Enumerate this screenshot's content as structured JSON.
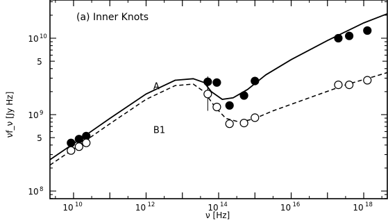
{
  "chart_data": {
    "type": "scatter",
    "title": "(a) Inner Knots",
    "xlabel": "ν [Hz]",
    "ylabel": "νf_ν [Jy Hz]",
    "xscale": "log",
    "yscale": "log",
    "xlim_log10": [
      9.35,
      18.65
    ],
    "ylim_log10": [
      7.9,
      10.5
    ],
    "grid": false,
    "x_ticks": [
      {
        "base": "10",
        "exp": "10",
        "log10": 10
      },
      {
        "base": "10",
        "exp": "12",
        "log10": 12
      },
      {
        "base": "10",
        "exp": "14",
        "log10": 14
      },
      {
        "base": "10",
        "exp": "16",
        "log10": 16
      },
      {
        "base": "10",
        "exp": "18",
        "log10": 18
      }
    ],
    "y_ticks": [
      {
        "text": "10",
        "exp": "8",
        "log10": 8
      },
      {
        "text": "5",
        "exp": "",
        "log10": 8.699
      },
      {
        "text": "10",
        "exp": "9",
        "log10": 9
      },
      {
        "text": "5",
        "exp": "",
        "log10": 9.699
      },
      {
        "text": "10",
        "exp": "10",
        "log10": 10
      }
    ],
    "annotations": [
      {
        "text": "A",
        "log10_x": 12.2,
        "log10_y": 9.33
      },
      {
        "text": "B1",
        "log10_x": 12.2,
        "log10_y": 8.76
      }
    ],
    "series": [
      {
        "name": "A",
        "style": "filled",
        "points": [
          [
            9.93,
            8.63
          ],
          [
            10.15,
            8.68
          ],
          [
            10.35,
            8.72
          ],
          [
            13.7,
            9.43
          ],
          [
            13.95,
            9.42
          ],
          [
            14.3,
            9.12
          ],
          [
            14.7,
            9.25
          ],
          [
            15.0,
            9.44
          ],
          [
            17.3,
            10.0
          ],
          [
            17.6,
            10.03
          ],
          [
            18.1,
            10.1
          ]
        ],
        "err_x": 13.7,
        "err_range_log10": [
          9.27,
          9.5
        ]
      },
      {
        "name": "B1",
        "style": "open",
        "points": [
          [
            9.93,
            8.53
          ],
          [
            10.15,
            8.58
          ],
          [
            10.35,
            8.63
          ],
          [
            13.7,
            9.27
          ],
          [
            13.95,
            9.1
          ],
          [
            14.3,
            8.88
          ],
          [
            14.7,
            8.89
          ],
          [
            15.0,
            8.96
          ],
          [
            17.3,
            9.39
          ],
          [
            17.6,
            9.39
          ],
          [
            18.1,
            9.45
          ]
        ],
        "err_x": 13.7,
        "err_range_log10": [
          9.05,
          9.4
        ]
      }
    ],
    "curves": [
      {
        "name": "A",
        "dash": "solid",
        "points": [
          [
            9.35,
            8.41
          ],
          [
            10.0,
            8.62
          ],
          [
            11.0,
            8.95
          ],
          [
            12.0,
            9.27
          ],
          [
            12.8,
            9.45
          ],
          [
            13.3,
            9.47
          ],
          [
            13.6,
            9.42
          ],
          [
            13.8,
            9.3
          ],
          [
            14.1,
            9.2
          ],
          [
            14.4,
            9.22
          ],
          [
            14.8,
            9.33
          ],
          [
            15.3,
            9.52
          ],
          [
            16.0,
            9.72
          ],
          [
            17.0,
            9.97
          ],
          [
            18.0,
            10.2
          ],
          [
            18.65,
            10.32
          ]
        ]
      },
      {
        "name": "B1",
        "dash": "dashed",
        "points": [
          [
            9.35,
            8.34
          ],
          [
            10.0,
            8.55
          ],
          [
            11.0,
            8.88
          ],
          [
            12.0,
            9.2
          ],
          [
            12.8,
            9.38
          ],
          [
            13.3,
            9.4
          ],
          [
            13.6,
            9.3
          ],
          [
            13.9,
            9.1
          ],
          [
            14.2,
            8.95
          ],
          [
            14.6,
            8.9
          ],
          [
            15.0,
            8.95
          ],
          [
            15.5,
            9.05
          ],
          [
            16.5,
            9.22
          ],
          [
            17.5,
            9.39
          ],
          [
            18.3,
            9.5
          ],
          [
            18.65,
            9.55
          ]
        ]
      }
    ]
  }
}
